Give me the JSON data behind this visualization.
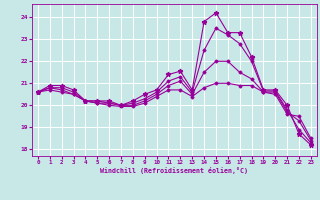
{
  "xlabel": "Windchill (Refroidissement éolien,°C)",
  "background_color": "#c8e8e8",
  "grid_color": "#a0c8c8",
  "line_color": "#990099",
  "ylim": [
    17.7,
    24.6
  ],
  "xlim": [
    -0.5,
    23.5
  ],
  "yticks": [
    18,
    19,
    20,
    21,
    22,
    23,
    24
  ],
  "xticks": [
    0,
    1,
    2,
    3,
    4,
    5,
    6,
    7,
    8,
    9,
    10,
    11,
    12,
    13,
    14,
    15,
    16,
    17,
    18,
    19,
    20,
    21,
    22,
    23
  ],
  "lines": [
    {
      "x": [
        0,
        1,
        2,
        3,
        4,
        5,
        6,
        7,
        8,
        9,
        10,
        11,
        12,
        13,
        14,
        15,
        16,
        17,
        18,
        19,
        20,
        21,
        22,
        23
      ],
      "y": [
        20.6,
        20.9,
        20.9,
        20.7,
        20.2,
        20.2,
        20.2,
        20.0,
        20.2,
        20.5,
        20.7,
        21.4,
        21.55,
        20.7,
        23.8,
        24.2,
        23.3,
        23.3,
        22.2,
        20.7,
        20.7,
        20.0,
        18.7,
        18.2
      ],
      "marker": "*",
      "markersize": 3.5
    },
    {
      "x": [
        0,
        1,
        2,
        3,
        4,
        5,
        6,
        7,
        8,
        9,
        10,
        11,
        12,
        13,
        14,
        15,
        16,
        17,
        18,
        19,
        20,
        21,
        22,
        23
      ],
      "y": [
        20.6,
        20.8,
        20.8,
        20.6,
        20.2,
        20.2,
        20.1,
        20.0,
        20.1,
        20.3,
        20.6,
        21.1,
        21.3,
        20.6,
        22.5,
        23.5,
        23.2,
        22.8,
        22.0,
        20.65,
        20.65,
        19.8,
        18.9,
        18.3
      ],
      "marker": "D",
      "markersize": 1.5
    },
    {
      "x": [
        0,
        1,
        2,
        3,
        4,
        5,
        6,
        7,
        8,
        9,
        10,
        11,
        12,
        13,
        14,
        15,
        16,
        17,
        18,
        19,
        20,
        21,
        22,
        23
      ],
      "y": [
        20.6,
        20.8,
        20.7,
        20.5,
        20.2,
        20.1,
        20.1,
        20.0,
        20.0,
        20.2,
        20.5,
        20.9,
        21.1,
        20.5,
        21.5,
        22.0,
        22.0,
        21.5,
        21.2,
        20.6,
        20.6,
        19.7,
        19.3,
        18.4
      ],
      "marker": "D",
      "markersize": 1.5
    },
    {
      "x": [
        0,
        1,
        2,
        3,
        4,
        5,
        6,
        7,
        8,
        9,
        10,
        11,
        12,
        13,
        14,
        15,
        16,
        17,
        18,
        19,
        20,
        21,
        22,
        23
      ],
      "y": [
        20.6,
        20.7,
        20.6,
        20.5,
        20.2,
        20.1,
        20.0,
        19.95,
        19.95,
        20.1,
        20.4,
        20.7,
        20.7,
        20.4,
        20.8,
        21.0,
        21.0,
        20.9,
        20.9,
        20.6,
        20.5,
        19.6,
        19.5,
        18.5
      ],
      "marker": "D",
      "markersize": 1.5
    }
  ]
}
